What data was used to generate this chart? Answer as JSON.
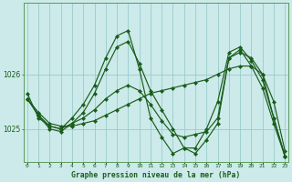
{
  "title": "Graphe pression niveau de la mer (hPa)",
  "background_color": "#cceaea",
  "grid_color": "#99cccc",
  "line_color": "#1a5c1a",
  "x_ticks": [
    0,
    1,
    2,
    3,
    4,
    5,
    6,
    7,
    8,
    9,
    10,
    11,
    12,
    13,
    14,
    15,
    16,
    17,
    18,
    19,
    20,
    21,
    22,
    23
  ],
  "ylim": [
    1024.4,
    1027.3
  ],
  "yticks": [
    1025,
    1026
  ],
  "series": [
    [
      1025.55,
      1025.3,
      1025.1,
      1025.05,
      1025.05,
      1025.1,
      1025.15,
      1025.25,
      1025.35,
      1025.45,
      1025.55,
      1025.65,
      1025.7,
      1025.75,
      1025.8,
      1025.85,
      1025.9,
      1026.0,
      1026.1,
      1026.15,
      1026.15,
      1026.0,
      1025.5,
      1024.6
    ],
    [
      1025.55,
      1025.25,
      1025.05,
      1025.0,
      1025.1,
      1025.2,
      1025.35,
      1025.55,
      1025.7,
      1025.8,
      1025.7,
      1025.45,
      1025.15,
      1024.9,
      1024.85,
      1024.9,
      1024.95,
      1025.2,
      1026.3,
      1026.4,
      1026.3,
      1026.0,
      1025.2,
      1024.5
    ],
    [
      1025.55,
      1025.25,
      1025.0,
      1024.95,
      1025.1,
      1025.3,
      1025.65,
      1026.1,
      1026.5,
      1026.6,
      1026.2,
      1025.7,
      1025.35,
      1025.0,
      1024.65,
      1024.55,
      1024.8,
      1025.1,
      1026.3,
      1026.45,
      1026.15,
      1025.75,
      1025.1,
      1024.5
    ],
    [
      1025.65,
      1025.2,
      1025.05,
      1025.0,
      1025.2,
      1025.45,
      1025.8,
      1026.3,
      1026.7,
      1026.8,
      1026.1,
      1025.2,
      1024.85,
      1024.55,
      1024.65,
      1024.65,
      1025.0,
      1025.5,
      1026.4,
      1026.5,
      1026.25,
      1025.9,
      1025.2,
      1024.5
    ]
  ]
}
